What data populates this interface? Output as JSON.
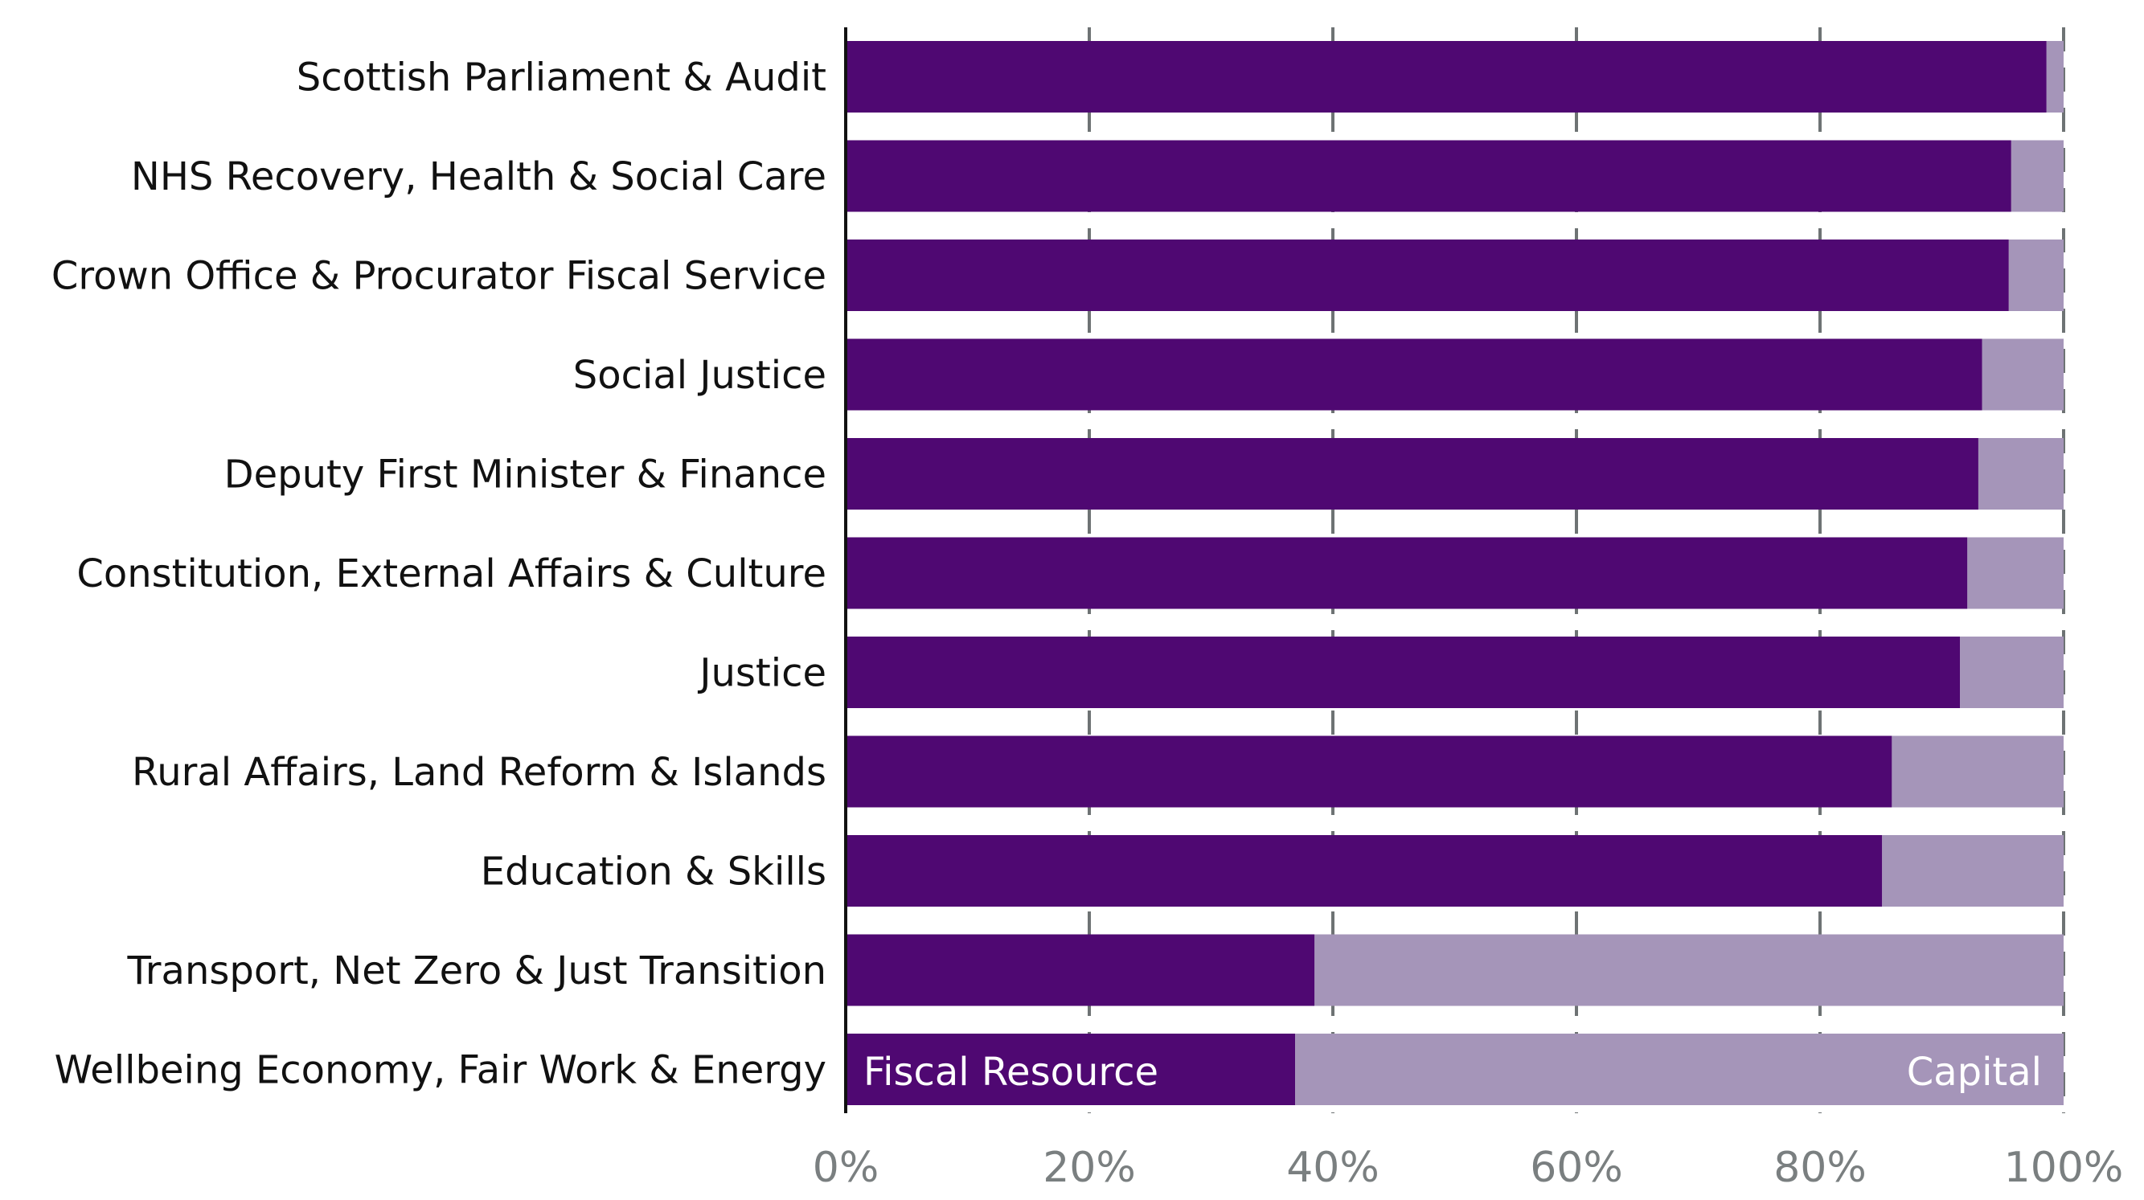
{
  "chart_data": {
    "type": "bar",
    "orientation": "horizontal",
    "stacked": "percent",
    "categories": [
      "Scottish Parliament & Audit",
      "NHS Recovery, Health & Social Care",
      "Crown Office & Procurator Fiscal Service",
      "Social Justice",
      "Deputy First Minister & Finance",
      "Constitution, External Affairs & Culture",
      "Justice",
      "Rural Affairs, Land Reform & Islands",
      "Education & Skills",
      "Transport, Net Zero & Just Transition",
      "Wellbeing Economy, Fair Work & Energy"
    ],
    "series": [
      {
        "name": "Fiscal Resource",
        "color": "#4f0872",
        "values": [
          98.6,
          95.7,
          95.5,
          93.3,
          93.0,
          92.1,
          91.5,
          85.9,
          85.1,
          38.5,
          36.9
        ]
      },
      {
        "name": "Capital",
        "color": "#a595b9",
        "values": [
          1.4,
          4.3,
          4.5,
          6.7,
          7.0,
          7.9,
          8.5,
          14.1,
          14.9,
          61.5,
          63.1
        ]
      }
    ],
    "xlim": [
      0,
      100
    ],
    "xticks": [
      "0%",
      "20%",
      "40%",
      "60%",
      "80%",
      "100%"
    ],
    "xtick_values": [
      0,
      20,
      40,
      60,
      80,
      100
    ],
    "grid": "vertical dashed",
    "legend": "inline labels on bottom bar",
    "xlabel": "",
    "ylabel": "",
    "title": ""
  }
}
